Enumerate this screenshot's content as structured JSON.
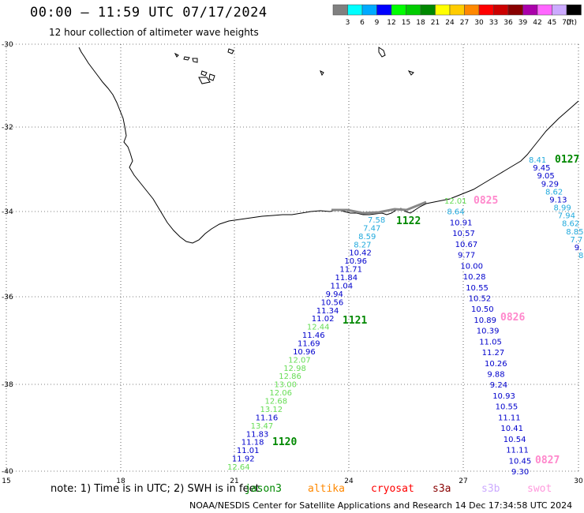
{
  "title": "00:00 – 11:59 UTC 07/17/2024",
  "subtitle": "12 hour collection of altimeter wave heights",
  "legend": {
    "colors": [
      "#808080",
      "#00ffff",
      "#00aaff",
      "#0000ff",
      "#00ff00",
      "#00cc00",
      "#008800",
      "#ffff00",
      "#ffcc00",
      "#ff8800",
      "#ff0000",
      "#cc0000",
      "#880000",
      "#aa00aa",
      "#ff66ff",
      "#ccaaff",
      "#000000"
    ],
    "labels": [
      "3",
      "6",
      "9",
      "12",
      "15",
      "18",
      "21",
      "24",
      "27",
      "30",
      "33",
      "36",
      "39",
      "42",
      "45",
      "70"
    ],
    "unit": "(ft)"
  },
  "axes": {
    "lat_labels": [
      "-30",
      "-32",
      "-34",
      "-36",
      "-38",
      "-40"
    ],
    "lon_labels": [
      "15",
      "18",
      "21",
      "24",
      "27",
      "30"
    ]
  },
  "track_1120_1121_1122": {
    "pass_labels": [
      "1122",
      "1121",
      "1120"
    ],
    "values": [
      {
        "v": "7.58",
        "c": "#22aadd"
      },
      {
        "v": "7.47",
        "c": "#22aadd"
      },
      {
        "v": "8.59",
        "c": "#22aadd"
      },
      {
        "v": "8.27",
        "c": "#22aadd"
      },
      {
        "v": "10.42",
        "c": "#0000cc"
      },
      {
        "v": "10.96",
        "c": "#0000cc"
      },
      {
        "v": "11.71",
        "c": "#0000cc"
      },
      {
        "v": "11.84",
        "c": "#0000cc"
      },
      {
        "v": "11.04",
        "c": "#0000cc"
      },
      {
        "v": "9.94",
        "c": "#0000cc"
      },
      {
        "v": "10.56",
        "c": "#0000cc"
      },
      {
        "v": "11.34",
        "c": "#0000cc"
      },
      {
        "v": "11.02",
        "c": "#0000cc"
      },
      {
        "v": "12.44",
        "c": "#66dd55"
      },
      {
        "v": "11.46",
        "c": "#0000cc"
      },
      {
        "v": "11.69",
        "c": "#0000cc"
      },
      {
        "v": "10.96",
        "c": "#0000cc"
      },
      {
        "v": "12.07",
        "c": "#66dd55"
      },
      {
        "v": "12.98",
        "c": "#66dd55"
      },
      {
        "v": "12.86",
        "c": "#66dd55"
      },
      {
        "v": "13.00",
        "c": "#66dd55"
      },
      {
        "v": "12.06",
        "c": "#66dd55"
      },
      {
        "v": "12.68",
        "c": "#66dd55"
      },
      {
        "v": "13.12",
        "c": "#66dd55"
      },
      {
        "v": "11.16",
        "c": "#0000cc"
      },
      {
        "v": "13.47",
        "c": "#66dd55"
      },
      {
        "v": "11.83",
        "c": "#0000cc"
      },
      {
        "v": "11.18",
        "c": "#0000cc"
      },
      {
        "v": "11.01",
        "c": "#0000cc"
      },
      {
        "v": "11.92",
        "c": "#0000cc"
      },
      {
        "v": "12.64",
        "c": "#66dd55"
      }
    ]
  },
  "track_0825_0826_0827": {
    "pass_labels": [
      "0825",
      "0826",
      "0827"
    ],
    "values": [
      {
        "v": "12.01",
        "c": "#66dd55"
      },
      {
        "v": "8.64",
        "c": "#22aadd"
      },
      {
        "v": "10.91",
        "c": "#0000cc"
      },
      {
        "v": "10.57",
        "c": "#0000cc"
      },
      {
        "v": "10.67",
        "c": "#0000cc"
      },
      {
        "v": "9.77",
        "c": "#0000cc"
      },
      {
        "v": "10.00",
        "c": "#0000cc"
      },
      {
        "v": "10.28",
        "c": "#0000cc"
      },
      {
        "v": "10.55",
        "c": "#0000cc"
      },
      {
        "v": "10.52",
        "c": "#0000cc"
      },
      {
        "v": "10.50",
        "c": "#0000cc"
      },
      {
        "v": "10.89",
        "c": "#0000cc"
      },
      {
        "v": "10.39",
        "c": "#0000cc"
      },
      {
        "v": "11.05",
        "c": "#0000cc"
      },
      {
        "v": "11.27",
        "c": "#0000cc"
      },
      {
        "v": "10.26",
        "c": "#0000cc"
      },
      {
        "v": "9.88",
        "c": "#0000cc"
      },
      {
        "v": "9.24",
        "c": "#0000cc"
      },
      {
        "v": "10.93",
        "c": "#0000cc"
      },
      {
        "v": "10.55",
        "c": "#0000cc"
      },
      {
        "v": "11.11",
        "c": "#0000cc"
      },
      {
        "v": "10.41",
        "c": "#0000cc"
      },
      {
        "v": "10.54",
        "c": "#0000cc"
      },
      {
        "v": "11.11",
        "c": "#0000cc"
      },
      {
        "v": "10.45",
        "c": "#0000cc"
      },
      {
        "v": "9.30",
        "c": "#0000cc"
      }
    ]
  },
  "track_0127": {
    "pass_label": "0127",
    "values": [
      {
        "v": "8.41",
        "c": "#22aadd"
      },
      {
        "v": "9.45",
        "c": "#0000cc"
      },
      {
        "v": "9.05",
        "c": "#0000cc"
      },
      {
        "v": "9.29",
        "c": "#0000cc"
      },
      {
        "v": "8.62",
        "c": "#22aadd"
      },
      {
        "v": "9.13",
        "c": "#0000cc"
      },
      {
        "v": "8.99",
        "c": "#22aadd"
      },
      {
        "v": "7.94",
        "c": "#22aadd"
      },
      {
        "v": "8.62",
        "c": "#22aadd"
      },
      {
        "v": "8.85",
        "c": "#22aadd"
      },
      {
        "v": "7.7",
        "c": "#22aadd"
      },
      {
        "v": "9.",
        "c": "#0000cc"
      },
      {
        "v": "8",
        "c": "#22aadd"
      }
    ]
  },
  "note": "note: 1) Time is in UTC; 2) SWH is in feet",
  "satellites": [
    {
      "name": "jason3",
      "color": "#008800"
    },
    {
      "name": "altika",
      "color": "#ff8800"
    },
    {
      "name": "cryosat",
      "color": "#ff0000"
    },
    {
      "name": "s3a",
      "color": "#880000"
    },
    {
      "name": "s3b",
      "color": "#ccaaff"
    },
    {
      "name": "swot",
      "color": "#ff99dd"
    }
  ],
  "credit": "NOAA/NESDIS Center for Satellite Applications and Research   14 Dec 17:34:58 UTC 2024"
}
